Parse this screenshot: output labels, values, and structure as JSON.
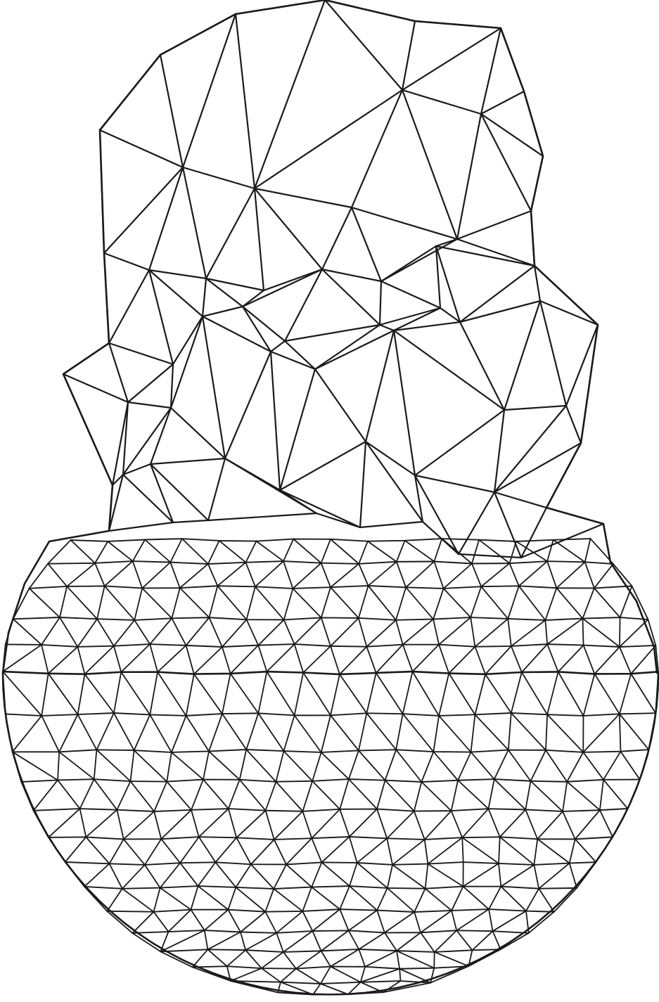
{
  "figure": {
    "subject": "triangulated-mesh",
    "background": "#ffffff",
    "stroke_color": "#1a1a1a",
    "parts": [
      "upper-rocky-cap",
      "lower-hemisphere"
    ]
  }
}
